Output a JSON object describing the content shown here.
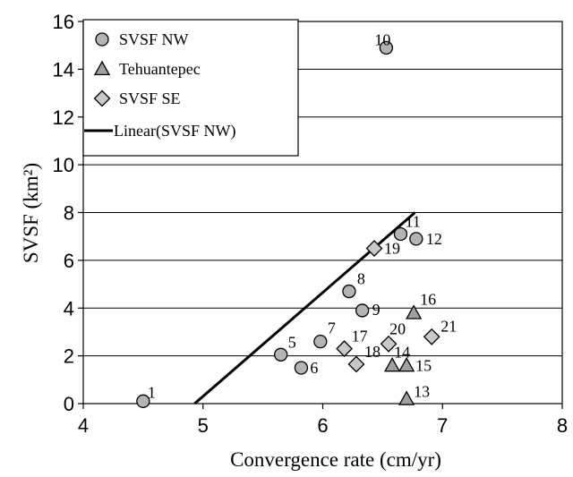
{
  "chart_data": {
    "type": "scatter",
    "xlabel": "Convergence rate (cm/yr)",
    "ylabel": "SVSF (km²)",
    "xlim": [
      4,
      8
    ],
    "ylim": [
      0,
      16
    ],
    "x_ticks": [
      4,
      5,
      6,
      7,
      8
    ],
    "y_ticks": [
      0,
      2,
      4,
      6,
      8,
      10,
      12,
      14,
      16
    ],
    "grid": "horizontal",
    "legend_position": "top-left",
    "series": [
      {
        "name": "SVSF NW",
        "marker": "circle",
        "color": "#b4b4b4",
        "points": [
          {
            "x": 4.5,
            "y": 0.1,
            "label": "1"
          },
          {
            "x": 5.65,
            "y": 2.05,
            "label": "5"
          },
          {
            "x": 5.82,
            "y": 1.5,
            "label": "6"
          },
          {
            "x": 5.98,
            "y": 2.6,
            "label": "7"
          },
          {
            "x": 6.22,
            "y": 4.7,
            "label": "8"
          },
          {
            "x": 6.33,
            "y": 3.9,
            "label": "9"
          },
          {
            "x": 6.53,
            "y": 14.9,
            "label": "10"
          },
          {
            "x": 6.65,
            "y": 7.1,
            "label": "11"
          },
          {
            "x": 6.78,
            "y": 6.9,
            "label": "12"
          }
        ]
      },
      {
        "name": "Tehuantepec",
        "marker": "triangle",
        "color": "#a0a0a0",
        "points": [
          {
            "x": 6.7,
            "y": 0.2,
            "label": "13"
          },
          {
            "x": 6.58,
            "y": 1.6,
            "label": "14"
          },
          {
            "x": 6.7,
            "y": 1.6,
            "label": "15"
          },
          {
            "x": 6.76,
            "y": 3.8,
            "label": "16"
          }
        ]
      },
      {
        "name": "SVSF SE",
        "marker": "diamond",
        "color": "#c8c8c8",
        "points": [
          {
            "x": 6.18,
            "y": 2.3,
            "label": "17"
          },
          {
            "x": 6.28,
            "y": 1.65,
            "label": "18"
          },
          {
            "x": 6.43,
            "y": 6.5,
            "label": "19"
          },
          {
            "x": 6.55,
            "y": 2.5,
            "label": "20"
          },
          {
            "x": 6.91,
            "y": 2.8,
            "label": "21"
          }
        ]
      },
      {
        "name": "Linear(SVSF NW)",
        "marker": "line",
        "color": "#000000",
        "line": {
          "x": [
            4.93,
            6.77
          ],
          "y": [
            0,
            8
          ]
        }
      }
    ]
  }
}
